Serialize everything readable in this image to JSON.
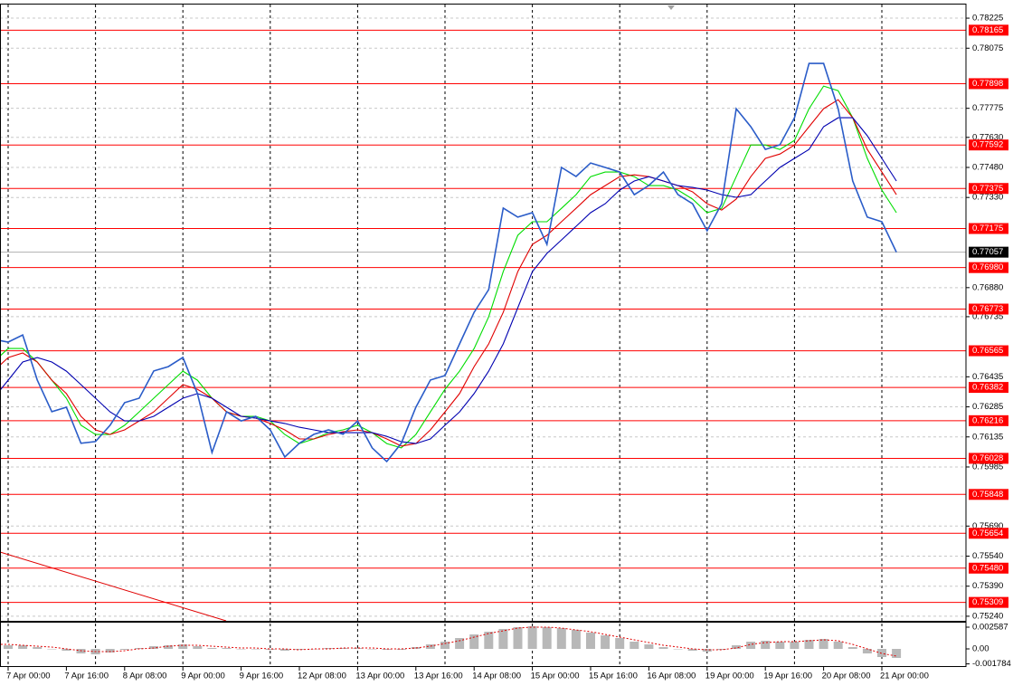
{
  "chart_data": [
    {
      "type": "line",
      "categories": [
        null,
        "7 Apr 00:00",
        null,
        null,
        null,
        "7 Apr 16:00",
        null,
        null,
        null,
        "8 Apr 08:00",
        null,
        null,
        null,
        "9 Apr 00:00",
        null,
        null,
        null,
        "9 Apr 16:00",
        null,
        null,
        null,
        "12 Apr 08:00",
        null,
        null,
        null,
        "13 Apr 00:00",
        null,
        null,
        null,
        "13 Apr 16:00",
        null,
        null,
        null,
        "14 Apr 08:00",
        null,
        null,
        null,
        "15 Apr 00:00",
        null,
        null,
        null,
        "15 Apr 16:00",
        null,
        null,
        null,
        "16 Apr 08:00",
        null,
        null,
        null,
        "19 Apr 00:00",
        null,
        null,
        null,
        "19 Apr 16:00",
        null,
        null,
        null,
        "20 Apr 08:00",
        null,
        null,
        null,
        "21 Apr 00:00",
        null
      ],
      "series": [
        {
          "color": "#00dd00",
          "values": [
            0.76509,
            0.76576,
            0.76576,
            0.76509,
            0.76418,
            0.76328,
            0.76193,
            0.76147,
            0.76147,
            0.76193,
            0.7626,
            0.76328,
            0.76396,
            0.76463,
            0.76418,
            0.76328,
            0.7626,
            0.76238,
            0.76238,
            0.76215,
            0.76147,
            0.76102,
            0.76125,
            0.76156,
            0.7617,
            0.76193,
            0.76156,
            0.76102,
            0.7608,
            0.76147,
            0.7626,
            0.76373,
            0.76463,
            0.76576,
            0.76734,
            0.7696,
            0.77141,
            0.77209,
            0.77209,
            0.77276,
            0.77344,
            0.77434,
            0.77457,
            0.77457,
            0.77434,
            0.77389,
            0.77389,
            0.77367,
            0.77322,
            0.77254,
            0.77276,
            0.77434,
            0.77592,
            0.77592,
            0.7757,
            0.77615,
            0.77773,
            0.77886,
            0.77863,
            0.77728,
            0.77525,
            0.77367,
            0.77254
          ]
        },
        {
          "color": "#e00000",
          "values": [
            0.76463,
            0.76531,
            0.76554,
            0.76509,
            0.76418,
            0.76351,
            0.76238,
            0.7617,
            0.76147,
            0.7617,
            0.76215,
            0.7626,
            0.76328,
            0.76396,
            0.76373,
            0.76328,
            0.7626,
            0.76238,
            0.76229,
            0.76202,
            0.7617,
            0.76125,
            0.76125,
            0.76147,
            0.76161,
            0.7617,
            0.76156,
            0.76125,
            0.76089,
            0.76102,
            0.7617,
            0.7626,
            0.76351,
            0.76486,
            0.76599,
            0.76757,
            0.7696,
            0.77096,
            0.77141,
            0.77209,
            0.77276,
            0.77344,
            0.77389,
            0.77434,
            0.77443,
            0.77434,
            0.77412,
            0.77389,
            0.77358,
            0.77299,
            0.77267,
            0.77322,
            0.77434,
            0.77525,
            0.77547,
            0.77592,
            0.77683,
            0.77773,
            0.77818,
            0.77728,
            0.7757,
            0.77457,
            0.77344
          ]
        },
        {
          "color": "#0000b0",
          "values": [
            0.76328,
            0.76418,
            0.76509,
            0.76531,
            0.76509,
            0.76463,
            0.76396,
            0.76328,
            0.7626,
            0.76215,
            0.76215,
            0.76238,
            0.76283,
            0.76328,
            0.76351,
            0.76328,
            0.76283,
            0.76238,
            0.76229,
            0.76215,
            0.76202,
            0.76183,
            0.7617,
            0.76156,
            0.76156,
            0.76156,
            0.76156,
            0.76138,
            0.76111,
            0.76102,
            0.76125,
            0.76193,
            0.7626,
            0.76351,
            0.76463,
            0.76599,
            0.7678,
            0.7696,
            0.77051,
            0.77118,
            0.77186,
            0.77254,
            0.77299,
            0.77367,
            0.77412,
            0.77434,
            0.77412,
            0.77389,
            0.7738,
            0.77367,
            0.77344,
            0.77331,
            0.77344,
            0.77412,
            0.7748,
            0.77525,
            0.7757,
            0.77683,
            0.77728,
            0.77728,
            0.77638,
            0.77525,
            0.77412
          ]
        },
        {
          "color": "#2a5cc8",
          "values": [
            0.76622,
            0.76608,
            0.76644,
            0.76419,
            0.76261,
            0.76283,
            0.76103,
            0.76112,
            0.76193,
            0.76306,
            0.76328,
            0.76464,
            0.76486,
            0.76532,
            0.76351,
            0.76057,
            0.76261,
            0.76215,
            0.76238,
            0.7617,
            0.76035,
            0.76103,
            0.76148,
            0.7617,
            0.76148,
            0.76215,
            0.7608,
            0.76012,
            0.76103,
            0.76283,
            0.76419,
            0.76441,
            0.76599,
            0.76757,
            0.7687,
            0.77277,
            0.77232,
            0.77254,
            0.77096,
            0.7748,
            0.77435,
            0.77502,
            0.7748,
            0.77457,
            0.77344,
            0.7739,
            0.77457,
            0.77344,
            0.77299,
            0.77164,
            0.77299,
            0.77773,
            0.77683,
            0.7757,
            0.77593,
            0.77728,
            0.77999,
            0.77999,
            0.77773,
            0.77412,
            0.77232,
            0.77209,
            0.77057
          ]
        }
      ],
      "ylim": [
        0.75217,
        0.78293
      ],
      "yticks": [
        0.78225,
        0.78075,
        0.77775,
        {
          "value": 0.7763,
          "label": "0.77630"
        },
        {
          "value": 0.7748,
          "label": "0.77480"
        },
        {
          "value": 0.7733,
          "label": "0.77330"
        },
        {
          "value": 0.7688,
          "label": "0.76880"
        },
        0.76735,
        0.76435,
        0.76285,
        0.76135,
        0.75985,
        {
          "value": 0.7569,
          "label": "0.75690"
        },
        {
          "value": 0.7554,
          "label": "0.75540"
        },
        {
          "value": 0.7539,
          "label": "0.75390"
        },
        {
          "value": 0.7524,
          "label": "0.75240"
        }
      ],
      "grid": true,
      "levels": [
        0.78165,
        0.77898,
        0.77592,
        0.77375,
        0.77175,
        {
          "value": 0.7698,
          "label": "0.76980"
        },
        0.76773,
        0.76565,
        0.76382,
        0.76216,
        0.76028,
        0.75848,
        0.75654,
        {
          "value": 0.7548,
          "label": "0.75480"
        },
        0.75309
      ],
      "level_color": "#ff0000",
      "price": 0.77057
    },
    {
      "type": "bar",
      "values": [
        0.000323,
        0.000431,
        0.000431,
        0.000216,
        0,
        -0.000216,
        -0.000539,
        -0.000647,
        -0.000431,
        -0.000108,
        0.000108,
        0.000323,
        0.000431,
        0.000539,
        0.000323,
        0.000108,
        0.000108,
        0,
        0,
        -0.000108,
        -0.000216,
        -0.000108,
        0,
        0.000108,
        0.000108,
        0.000108,
        0,
        -0.000108,
        -0.000108,
        0.000216,
        0.000539,
        0.000862,
        0.001294,
        0.001725,
        0.002048,
        0.002372,
        0.002587,
        0.002695,
        0.002587,
        0.002479,
        0.002264,
        0.00194,
        0.001617,
        0.001294,
        0.000862,
        0.000539,
        0.000216,
        0,
        -0.000216,
        -0.000323,
        -0.000108,
        0.000431,
        0.000862,
        0.00097,
        0.000862,
        0.000862,
        0.001078,
        0.001186,
        0.000862,
        0.000216,
        -0.000539,
        -0.00097,
        -0.001078
      ],
      "color": "#b8b8b8",
      "signal": {
        "color": "#e00000",
        "style": "dotted",
        "values": [
          0.000539,
          0.000539,
          0.000431,
          0.000323,
          0.000216,
          0,
          -0.000216,
          -0.000323,
          -0.000323,
          -0.000216,
          0,
          0.000108,
          0.000323,
          0.000431,
          0.000431,
          0.000323,
          0.000216,
          0.000108,
          0.000108,
          0,
          0,
          -0.000108,
          0,
          0,
          0.000108,
          0.000108,
          0.000108,
          0,
          0,
          0.000108,
          0.000323,
          0.000647,
          0.00097,
          0.001401,
          0.001833,
          0.002156,
          0.002479,
          0.002587,
          0.002587,
          0.002479,
          0.002264,
          0.002048,
          0.001725,
          0.001401,
          0.001078,
          0.000755,
          0.000431,
          0.000216,
          0,
          -0.000108,
          -0.000108,
          0.000108,
          0.000539,
          0.000755,
          0.000862,
          0.000862,
          0.00097,
          0.001078,
          0.00097,
          0.000539,
          0,
          -0.000539,
          -0.000862
        ]
      },
      "ylim": [
        -0.002048,
        0.003126
      ],
      "yticks": [
        0.002587,
        {
          "value": 0,
          "label": "0.00"
        },
        -0.001784
      ]
    }
  ]
}
